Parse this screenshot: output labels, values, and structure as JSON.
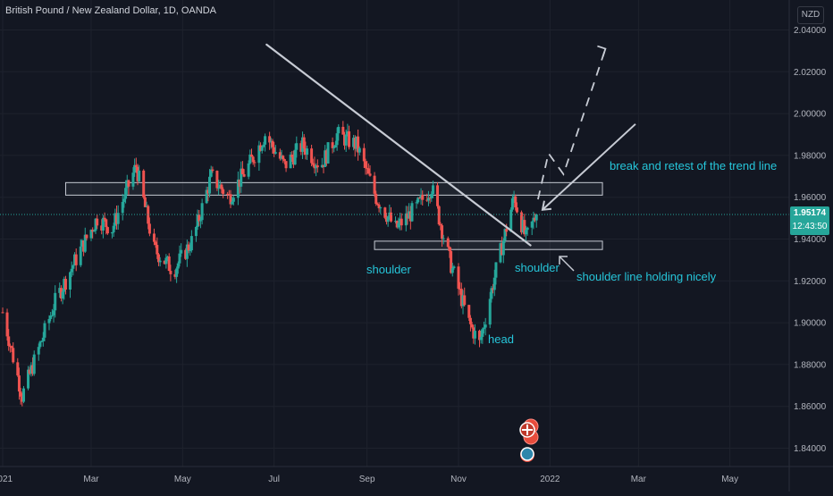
{
  "title": "British Pound / New Zealand Dollar, 1D, OANDA",
  "currency": "NZD",
  "last_price": "1.95174",
  "countdown": "12:43:50",
  "colors": {
    "background": "#131722",
    "up": "#26a69a",
    "down": "#ef5350",
    "annotation": "#26c6da",
    "lines": "#c7cbd4"
  },
  "annotations": {
    "breakout": "break and retest of the trend line",
    "left_shoulder": "shoulder",
    "right_shoulder": "shoulder",
    "neckline": "shoulder line holding nicely",
    "head": "head"
  },
  "chart_data": {
    "type": "candlestick",
    "symbol": "GBPNZD",
    "timeframe": "1D",
    "ylim": [
      1.83,
      2.045
    ],
    "y_ticks": [
      "2.04000",
      "2.02000",
      "2.00000",
      "1.98000",
      "1.96000",
      "1.94000",
      "1.92000",
      "1.90000",
      "1.88000",
      "1.86000",
      "1.84000"
    ],
    "x_ticks": [
      "2021",
      "Mar",
      "May",
      "Jul",
      "Sep",
      "Nov",
      "2022",
      "Mar",
      "May"
    ],
    "last_price": 1.95174,
    "series": [
      {
        "name": "GBPNZD",
        "keypoints": [
          {
            "date": "2021-01-01",
            "value": 1.905
          },
          {
            "date": "2021-01-14",
            "value": 1.865
          },
          {
            "date": "2021-02-05",
            "value": 1.91
          },
          {
            "date": "2021-02-22",
            "value": 1.935
          },
          {
            "date": "2021-03-05",
            "value": 1.95
          },
          {
            "date": "2021-03-15",
            "value": 1.945
          },
          {
            "date": "2021-03-31",
            "value": 1.975
          },
          {
            "date": "2021-04-12",
            "value": 1.935
          },
          {
            "date": "2021-04-25",
            "value": 1.925
          },
          {
            "date": "2021-05-08",
            "value": 1.94
          },
          {
            "date": "2021-05-20",
            "value": 1.97
          },
          {
            "date": "2021-06-01",
            "value": 1.96
          },
          {
            "date": "2021-06-14",
            "value": 1.975
          },
          {
            "date": "2021-06-25",
            "value": 1.99
          },
          {
            "date": "2021-07-08",
            "value": 1.975
          },
          {
            "date": "2021-07-20",
            "value": 1.985
          },
          {
            "date": "2021-08-01",
            "value": 1.975
          },
          {
            "date": "2021-08-12",
            "value": 1.99
          },
          {
            "date": "2021-08-25",
            "value": 1.985
          },
          {
            "date": "2021-09-07",
            "value": 1.96
          },
          {
            "date": "2021-09-20",
            "value": 1.945
          },
          {
            "date": "2021-10-04",
            "value": 1.955
          },
          {
            "date": "2021-10-14",
            "value": 1.965
          },
          {
            "date": "2021-10-26",
            "value": 1.93
          },
          {
            "date": "2021-11-08",
            "value": 1.9
          },
          {
            "date": "2021-11-15",
            "value": 1.89
          },
          {
            "date": "2021-11-26",
            "value": 1.925
          },
          {
            "date": "2021-12-08",
            "value": 1.96
          },
          {
            "date": "2021-12-16",
            "value": 1.94
          },
          {
            "date": "2021-12-23",
            "value": 1.952
          }
        ]
      }
    ],
    "drawings": {
      "resistance_zone": {
        "from": "2021-02-12",
        "to": "2022-02-05",
        "low": 1.961,
        "high": 1.967
      },
      "neckline_zone": {
        "from": "2021-09-06",
        "to": "2022-02-05",
        "low": 1.935,
        "high": 1.939
      },
      "trendline": [
        {
          "date": "2021-06-26",
          "value": 2.033
        },
        {
          "date": "2021-12-19",
          "value": 1.937
        }
      ],
      "breakout_arrow": [
        {
          "date": "2021-12-27",
          "value": 1.954
        },
        {
          "date": "2022-02-27",
          "value": 1.995
        }
      ],
      "projection_dashed": [
        {
          "date": "2021-12-24",
          "value": 1.959
        },
        {
          "date": "2021-12-31",
          "value": 1.981
        },
        {
          "date": "2022-01-10",
          "value": 1.971
        },
        {
          "date": "2022-02-07",
          "value": 2.031
        }
      ]
    }
  }
}
